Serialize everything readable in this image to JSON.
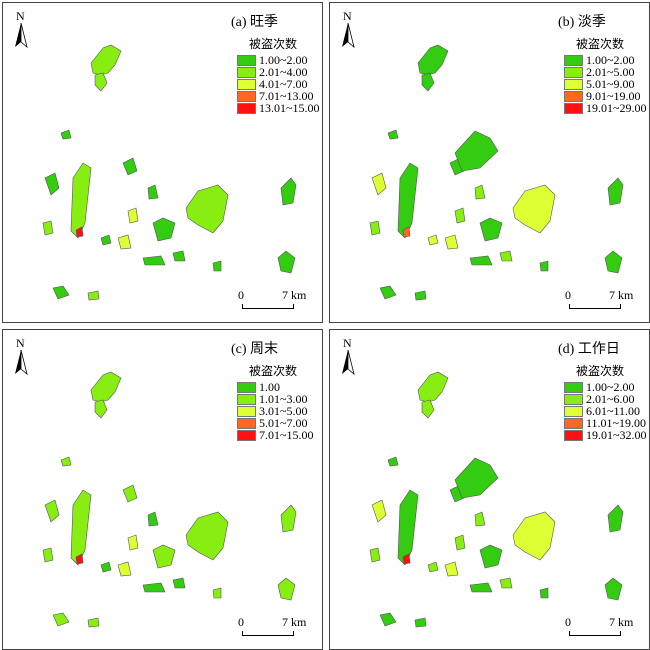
{
  "legend_title": "被盗次数",
  "north_label": "N",
  "scale": {
    "zero": "0",
    "distance": "7 km"
  },
  "class_colors": [
    "#33cc11",
    "#88ee11",
    "#ddff33",
    "#ff6622",
    "#ff1111"
  ],
  "panels": [
    {
      "title": "(a) 旺季",
      "legend": [
        "1.00~2.00",
        "2.01~4.00",
        "4.01~7.00",
        "7.01~13.00",
        "13.01~15.00"
      ]
    },
    {
      "title": "(b) 淡季",
      "legend": [
        "1.00~2.00",
        "2.01~5.00",
        "5.01~9.00",
        "9.01~19.00",
        "19.01~29.00"
      ]
    },
    {
      "title": "(c) 周末",
      "legend": [
        "1.00",
        "1.01~3.00",
        "3.01~5.00",
        "5.01~7.00",
        "7.01~15.00"
      ]
    },
    {
      "title": "(d) 工作日",
      "legend": [
        "1.00~2.00",
        "2.01~6.00",
        "6.01~11.00",
        "11.01~19.00",
        "19.01~32.00"
      ]
    }
  ]
}
